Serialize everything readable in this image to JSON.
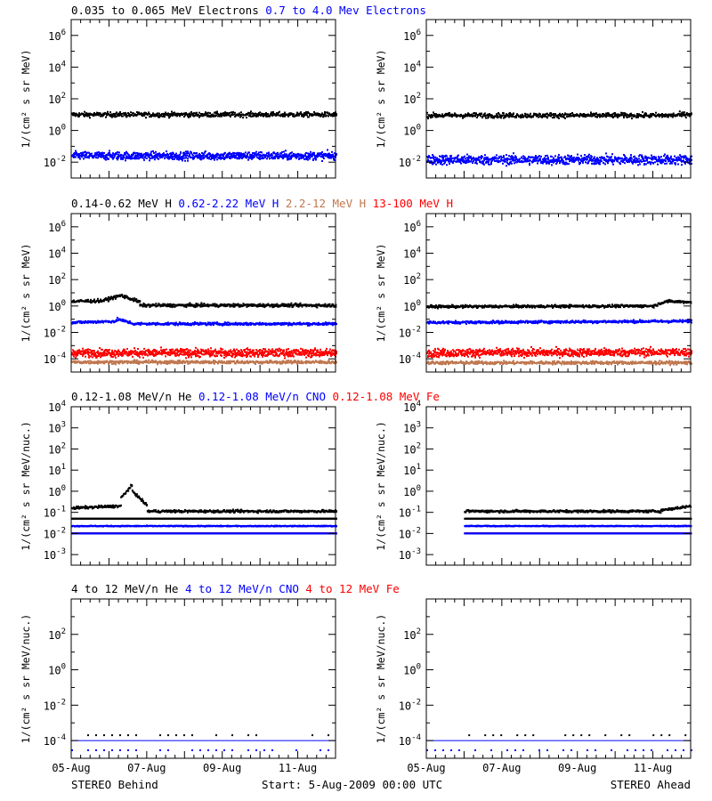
{
  "colors": {
    "black": "#000000",
    "blue": "#0000ff",
    "tan": "#c07850",
    "red": "#ff0000"
  },
  "footer": {
    "left": "STEREO Behind",
    "center": "Start:  5-Aug-2009 00:00 UTC",
    "right": "STEREO Ahead"
  },
  "x_tick_labels": [
    "05-Aug",
    "07-Aug",
    "09-Aug",
    "11-Aug"
  ],
  "chart_data": [
    {
      "type": "scatter",
      "row": 0,
      "legend": [
        {
          "text": "0.035 to 0.065 MeV Electrons",
          "color": "black"
        },
        {
          "text": "0.7 to 4.0 Mev Electrons",
          "color": "blue"
        }
      ],
      "ylabel": "1/(cm² s sr MeV)",
      "yscale": "log",
      "ylim_exp": [
        -3,
        7
      ],
      "y_ticks": [
        {
          "exp": 6,
          "label": "10",
          "sup": "6"
        },
        {
          "exp": 4,
          "label": "10",
          "sup": "4"
        },
        {
          "exp": 2,
          "label": "10",
          "sup": "2"
        },
        {
          "exp": 0,
          "label": "10",
          "sup": "0"
        },
        {
          "exp": -2,
          "label": "10",
          "sup": "-2"
        }
      ],
      "xlim_days": [
        0,
        7
      ],
      "panels": [
        {
          "spacecraft": "STEREO Behind",
          "series": [
            {
              "color": "black",
              "segments": [
                {
                  "x": [
                    0,
                    7
                  ],
                  "log_y": [
                    1.0,
                    1.0
                  ]
                }
              ],
              "scatter": 0.15,
              "start_day": 0
            },
            {
              "color": "blue",
              "segments": [
                {
                  "x": [
                    0,
                    7
                  ],
                  "log_y": [
                    -1.6,
                    -1.6
                  ]
                }
              ],
              "scatter": 0.25,
              "start_day": 0
            }
          ]
        },
        {
          "spacecraft": "STEREO Ahead",
          "series": [
            {
              "color": "black",
              "segments": [
                {
                  "x": [
                    0,
                    6.5
                  ],
                  "log_y": [
                    0.95,
                    0.95
                  ]
                },
                {
                  "x": [
                    6.5,
                    7
                  ],
                  "log_y": [
                    0.95,
                    1.05
                  ]
                }
              ],
              "scatter": 0.15,
              "start_day": 0
            },
            {
              "color": "blue",
              "segments": [
                {
                  "x": [
                    0,
                    7
                  ],
                  "log_y": [
                    -1.85,
                    -1.85
                  ]
                }
              ],
              "scatter": 0.3,
              "start_day": 0
            }
          ]
        }
      ]
    },
    {
      "type": "scatter",
      "row": 1,
      "legend": [
        {
          "text": "0.14-0.62 MeV H",
          "color": "black"
        },
        {
          "text": "0.62-2.22 MeV H",
          "color": "blue"
        },
        {
          "text": "2.2-12 MeV H",
          "color": "tan"
        },
        {
          "text": "13-100 MeV H",
          "color": "red"
        }
      ],
      "ylabel": "1/(cm² s sr MeV)",
      "yscale": "log",
      "ylim_exp": [
        -5,
        7
      ],
      "y_ticks": [
        {
          "exp": 6,
          "label": "10",
          "sup": "6"
        },
        {
          "exp": 4,
          "label": "10",
          "sup": "4"
        },
        {
          "exp": 2,
          "label": "10",
          "sup": "2"
        },
        {
          "exp": 0,
          "label": "10",
          "sup": "0"
        },
        {
          "exp": -2,
          "label": "10",
          "sup": "-2"
        },
        {
          "exp": -4,
          "label": "10",
          "sup": "-4"
        }
      ],
      "xlim_days": [
        0,
        7
      ],
      "panels": [
        {
          "spacecraft": "STEREO Behind",
          "series": [
            {
              "color": "black",
              "segments": [
                {
                  "x": [
                    0,
                    0.8
                  ],
                  "log_y": [
                    0.35,
                    0.4
                  ]
                },
                {
                  "x": [
                    0.8,
                    1.3
                  ],
                  "log_y": [
                    0.4,
                    0.8
                  ]
                },
                {
                  "x": [
                    1.3,
                    1.8
                  ],
                  "log_y": [
                    0.8,
                    0.3
                  ]
                },
                {
                  "x": [
                    1.8,
                    7
                  ],
                  "log_y": [
                    0.05,
                    0.05
                  ]
                }
              ],
              "scatter": 0.12,
              "start_day": 0
            },
            {
              "color": "blue",
              "segments": [
                {
                  "x": [
                    0,
                    1.2
                  ],
                  "log_y": [
                    -1.25,
                    -1.15
                  ]
                },
                {
                  "x": [
                    1.2,
                    1.6
                  ],
                  "log_y": [
                    -1.0,
                    -1.3
                  ]
                },
                {
                  "x": [
                    1.6,
                    7
                  ],
                  "log_y": [
                    -1.35,
                    -1.35
                  ]
                }
              ],
              "scatter": 0.1,
              "start_day": 0
            },
            {
              "color": "red",
              "segments": [
                {
                  "x": [
                    0,
                    7
                  ],
                  "log_y": [
                    -3.55,
                    -3.55
                  ]
                }
              ],
              "scatter": 0.3,
              "start_day": 0
            },
            {
              "color": "tan",
              "segments": [
                {
                  "x": [
                    0,
                    7
                  ],
                  "log_y": [
                    -4.25,
                    -4.25
                  ]
                }
              ],
              "scatter": 0.12,
              "start_day": 0
            }
          ]
        },
        {
          "spacecraft": "STEREO Ahead",
          "series": [
            {
              "color": "black",
              "segments": [
                {
                  "x": [
                    0,
                    6.0
                  ],
                  "log_y": [
                    -0.05,
                    0.0
                  ]
                },
                {
                  "x": [
                    6.0,
                    6.3
                  ],
                  "log_y": [
                    0.0,
                    0.35
                  ]
                },
                {
                  "x": [
                    6.3,
                    7
                  ],
                  "log_y": [
                    0.35,
                    0.3
                  ]
                }
              ],
              "scatter": 0.1,
              "start_day": 0
            },
            {
              "color": "blue",
              "segments": [
                {
                  "x": [
                    0,
                    7
                  ],
                  "log_y": [
                    -1.25,
                    -1.15
                  ]
                }
              ],
              "scatter": 0.1,
              "start_day": 0
            },
            {
              "color": "red",
              "segments": [
                {
                  "x": [
                    0,
                    7
                  ],
                  "log_y": [
                    -3.55,
                    -3.5
                  ]
                }
              ],
              "scatter": 0.3,
              "start_day": 0
            },
            {
              "color": "tan",
              "segments": [
                {
                  "x": [
                    0,
                    7
                  ],
                  "log_y": [
                    -4.3,
                    -4.3
                  ]
                }
              ],
              "scatter": 0.12,
              "start_day": 0
            }
          ]
        }
      ]
    },
    {
      "type": "scatter",
      "row": 2,
      "legend": [
        {
          "text": "0.12-1.08 MeV/n He",
          "color": "black"
        },
        {
          "text": "0.12-1.08 MeV/n CNO",
          "color": "blue"
        },
        {
          "text": "0.12-1.08 MeV Fe",
          "color": "red"
        }
      ],
      "ylabel": "1/(cm² s sr MeV/nuc.)",
      "yscale": "log",
      "ylim_exp": [
        -3.5,
        4
      ],
      "y_ticks": [
        {
          "exp": 4,
          "label": "10",
          "sup": "4"
        },
        {
          "exp": 3,
          "label": "10",
          "sup": "3"
        },
        {
          "exp": 2,
          "label": "10",
          "sup": "2"
        },
        {
          "exp": 1,
          "label": "10",
          "sup": "1"
        },
        {
          "exp": 0,
          "label": "10",
          "sup": "0"
        },
        {
          "exp": -1,
          "label": "10",
          "sup": "-1"
        },
        {
          "exp": -2,
          "label": "10",
          "sup": "-2"
        },
        {
          "exp": -3,
          "label": "10",
          "sup": "-3"
        }
      ],
      "xlim_days": [
        0,
        7
      ],
      "panels": [
        {
          "spacecraft": "STEREO Behind",
          "series": [
            {
              "color": "black",
              "segments": [
                {
                  "x": [
                    0,
                    1.3
                  ],
                  "log_y": [
                    -0.8,
                    -0.7
                  ]
                },
                {
                  "x": [
                    1.3,
                    1.6
                  ],
                  "log_y": [
                    -0.3,
                    0.3
                  ]
                },
                {
                  "x": [
                    1.6,
                    2.0
                  ],
                  "log_y": [
                    0.0,
                    -0.7
                  ]
                },
                {
                  "x": [
                    2.0,
                    7
                  ],
                  "log_y": [
                    -0.95,
                    -0.95
                  ]
                }
              ],
              "scatter": 0.06,
              "start_day": 0
            },
            {
              "color": "black",
              "segments": [
                {
                  "x": [
                    0,
                    7
                  ],
                  "log_y": [
                    -1.3,
                    -1.3
                  ]
                }
              ],
              "scatter": 0.0,
              "start_day": 0
            },
            {
              "color": "blue",
              "segments": [
                {
                  "x": [
                    0,
                    7
                  ],
                  "log_y": [
                    -1.65,
                    -1.65
                  ]
                }
              ],
              "scatter": 0.02,
              "start_day": 0
            },
            {
              "color": "red",
              "segments": [
                {
                  "x": [
                    0,
                    7
                  ],
                  "log_y": [
                    -2.0,
                    -2.0
                  ]
                }
              ],
              "scatter": 0.0,
              "start_day": 0
            },
            {
              "color": "blue",
              "segments": [
                {
                  "x": [
                    0,
                    7
                  ],
                  "log_y": [
                    -2.0,
                    -2.0
                  ]
                }
              ],
              "scatter": 0.0,
              "start_day": 0
            }
          ]
        },
        {
          "spacecraft": "STEREO Ahead",
          "series": [
            {
              "color": "black",
              "segments": [
                {
                  "x": [
                    1.0,
                    6.2
                  ],
                  "log_y": [
                    -0.95,
                    -0.95
                  ]
                },
                {
                  "x": [
                    6.2,
                    7
                  ],
                  "log_y": [
                    -0.9,
                    -0.7
                  ]
                }
              ],
              "scatter": 0.06,
              "start_day": 1.0
            },
            {
              "color": "black",
              "segments": [
                {
                  "x": [
                    1.0,
                    7
                  ],
                  "log_y": [
                    -1.3,
                    -1.3
                  ]
                }
              ],
              "scatter": 0.0,
              "start_day": 1.0
            },
            {
              "color": "blue",
              "segments": [
                {
                  "x": [
                    1.0,
                    7
                  ],
                  "log_y": [
                    -1.65,
                    -1.65
                  ]
                }
              ],
              "scatter": 0.02,
              "start_day": 1.0
            },
            {
              "color": "red",
              "segments": [
                {
                  "x": [
                    1.0,
                    7
                  ],
                  "log_y": [
                    -2.0,
                    -2.0
                  ]
                }
              ],
              "scatter": 0.0,
              "start_day": 1.0
            },
            {
              "color": "blue",
              "segments": [
                {
                  "x": [
                    1.0,
                    7
                  ],
                  "log_y": [
                    -2.0,
                    -2.0
                  ]
                }
              ],
              "scatter": 0.0,
              "start_day": 1.0
            }
          ]
        }
      ]
    },
    {
      "type": "scatter",
      "row": 3,
      "legend": [
        {
          "text": "4 to 12 MeV/n He",
          "color": "black"
        },
        {
          "text": "4 to 12 MeV/n CNO",
          "color": "blue"
        },
        {
          "text": "4 to 12 MeV Fe",
          "color": "red"
        }
      ],
      "ylabel": "1/(cm² s sr MeV/nuc.)",
      "yscale": "log",
      "ylim_exp": [
        -5,
        4
      ],
      "y_ticks": [
        {
          "exp": 2,
          "label": "10",
          "sup": "2"
        },
        {
          "exp": 0,
          "label": "10",
          "sup": "0"
        },
        {
          "exp": -2,
          "label": "10",
          "sup": "-2"
        },
        {
          "exp": -4,
          "label": "10",
          "sup": "-4"
        }
      ],
      "xlim_days": [
        0,
        7
      ],
      "panels": [
        {
          "spacecraft": "STEREO Behind",
          "series": [
            {
              "color": "black",
              "segments": [
                {
                  "x": [
                    0,
                    7
                  ],
                  "log_y": [
                    -3.7,
                    -3.7
                  ]
                }
              ],
              "scatter": 0.0,
              "sparse": true,
              "start_day": 0
            },
            {
              "color": "blue",
              "segments": [
                {
                  "x": [
                    0,
                    7
                  ],
                  "log_y": [
                    -4.0,
                    -4.0
                  ]
                }
              ],
              "scatter": 0.0,
              "line": true,
              "start_day": 0
            },
            {
              "color": "blue",
              "segments": [
                {
                  "x": [
                    0,
                    7
                  ],
                  "log_y": [
                    -4.55,
                    -4.55
                  ]
                }
              ],
              "scatter": 0.0,
              "sparse": true,
              "start_day": 0
            }
          ]
        },
        {
          "spacecraft": "STEREO Ahead",
          "series": [
            {
              "color": "black",
              "segments": [
                {
                  "x": [
                    0.9,
                    7
                  ],
                  "log_y": [
                    -3.7,
                    -3.7
                  ]
                }
              ],
              "scatter": 0.0,
              "sparse": true,
              "start_day": 0.9
            },
            {
              "color": "blue",
              "segments": [
                {
                  "x": [
                    0,
                    7
                  ],
                  "log_y": [
                    -4.0,
                    -4.0
                  ]
                }
              ],
              "scatter": 0.0,
              "line": true,
              "start_day": 0
            },
            {
              "color": "blue",
              "segments": [
                {
                  "x": [
                    0,
                    7
                  ],
                  "log_y": [
                    -4.55,
                    -4.55
                  ]
                }
              ],
              "scatter": 0.0,
              "sparse": true,
              "start_day": 0
            }
          ]
        }
      ]
    }
  ]
}
